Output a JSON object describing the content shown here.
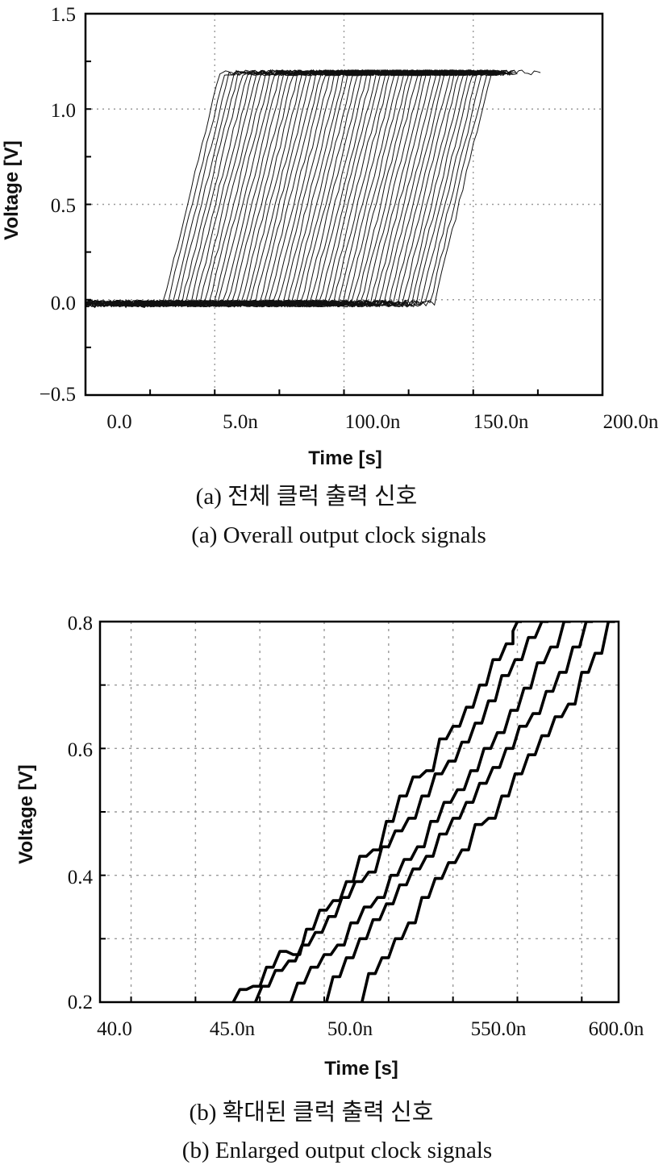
{
  "chart_data": [
    {
      "type": "line",
      "x_tick_labels": [
        "0.0",
        "5.0n",
        "100.0n",
        "150.0n",
        "200.0n"
      ],
      "y_tick_labels": [
        "1.5",
        "1.0",
        "0.5",
        "0.0",
        "−0.5"
      ],
      "xlabel": "Time [s]",
      "ylabel": "Voltage [V]",
      "xlim": [
        -13,
        187
      ],
      "ylim": [
        -0.5,
        1.5
      ],
      "grid": true,
      "caption_kr": "(a) 전체 클럭 출력 신호",
      "caption_en": "(a) Overall output clock signals",
      "waveforms": {
        "count": 60,
        "low_level": -0.02,
        "high_level": 1.19,
        "rise_start_first": 17,
        "rise_start_last": 122,
        "rise_time": 22,
        "high_hold_end": 155,
        "x_start": -13,
        "last_trace_end": 164
      },
      "series": []
    },
    {
      "type": "line",
      "x_tick_labels": [
        "40.0",
        "45.0n",
        "50.0n",
        "550.0n",
        "600.0n"
      ],
      "y_tick_labels": [
        "0.8",
        "0.6",
        "0.4",
        "0.2"
      ],
      "xlabel": "Time [s]",
      "ylabel": "Voltage [V]",
      "xlim": [
        40.3,
        51.98
      ],
      "ylim": [
        0.2,
        0.8
      ],
      "grid": true,
      "caption_kr": "(b) 확대된 클럭 출력 신호",
      "caption_en": "(b) Enlarged output clock signals",
      "series": [
        {
          "x": [
            43.3,
            43.6,
            43.9,
            44.2,
            44.5,
            44.8,
            45.1,
            45.4,
            45.7,
            46.0,
            46.3,
            46.6,
            46.9,
            47.2,
            47.5,
            47.8,
            48.1,
            48.4,
            48.7,
            49.0,
            49.3,
            49.6,
            49.6,
            49.8
          ],
          "y": [
            0.2,
            0.22,
            0.225,
            0.255,
            0.28,
            0.275,
            0.315,
            0.345,
            0.36,
            0.39,
            0.43,
            0.44,
            0.485,
            0.525,
            0.555,
            0.565,
            0.615,
            0.635,
            0.665,
            0.7,
            0.74,
            0.765,
            0.785,
            0.8
          ]
        },
        {
          "x": [
            43.8,
            44.1,
            44.4,
            44.7,
            45.0,
            45.3,
            45.6,
            45.9,
            46.2,
            46.5,
            46.8,
            47.1,
            47.4,
            47.7,
            48.0,
            48.3,
            48.6,
            48.9,
            49.2,
            49.5,
            49.8,
            50.1,
            50.4
          ],
          "y": [
            0.2,
            0.225,
            0.25,
            0.265,
            0.29,
            0.31,
            0.335,
            0.365,
            0.39,
            0.405,
            0.445,
            0.47,
            0.49,
            0.525,
            0.56,
            0.58,
            0.61,
            0.64,
            0.675,
            0.715,
            0.74,
            0.775,
            0.8
          ]
        },
        {
          "x": [
            44.6,
            44.9,
            45.2,
            45.5,
            45.8,
            46.1,
            46.4,
            46.7,
            47.0,
            47.3,
            47.6,
            47.9,
            48.2,
            48.5,
            48.8,
            49.1,
            49.4,
            49.7,
            50.0,
            50.3,
            50.6,
            50.9
          ],
          "y": [
            0.2,
            0.23,
            0.255,
            0.275,
            0.29,
            0.325,
            0.35,
            0.365,
            0.4,
            0.425,
            0.445,
            0.485,
            0.515,
            0.535,
            0.565,
            0.6,
            0.625,
            0.66,
            0.695,
            0.735,
            0.76,
            0.8
          ]
        },
        {
          "x": [
            45.4,
            45.7,
            46.0,
            46.3,
            46.6,
            46.9,
            47.2,
            47.5,
            47.8,
            48.1,
            48.4,
            48.7,
            49.0,
            49.3,
            49.6,
            49.9,
            50.2,
            50.5,
            50.8,
            51.1,
            51.4
          ],
          "y": [
            0.2,
            0.24,
            0.27,
            0.3,
            0.33,
            0.355,
            0.385,
            0.41,
            0.43,
            0.465,
            0.49,
            0.515,
            0.545,
            0.57,
            0.6,
            0.635,
            0.655,
            0.69,
            0.72,
            0.76,
            0.8
          ]
        },
        {
          "x": [
            46.2,
            46.5,
            46.8,
            47.1,
            47.4,
            47.7,
            48.0,
            48.3,
            48.6,
            48.9,
            49.2,
            49.5,
            49.8,
            50.1,
            50.4,
            50.7,
            51.0,
            51.3,
            51.6,
            51.9
          ],
          "y": [
            0.2,
            0.245,
            0.27,
            0.3,
            0.325,
            0.365,
            0.395,
            0.42,
            0.44,
            0.48,
            0.49,
            0.525,
            0.56,
            0.59,
            0.62,
            0.65,
            0.67,
            0.72,
            0.75,
            0.8
          ]
        }
      ]
    }
  ]
}
